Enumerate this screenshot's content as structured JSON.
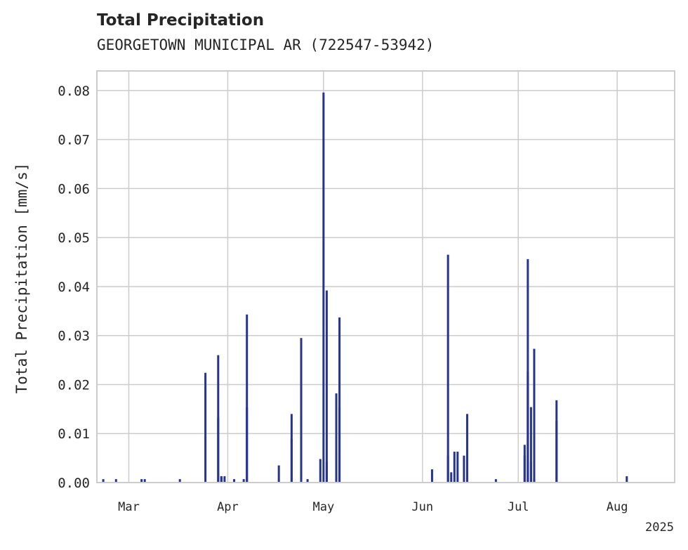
{
  "chart_data": {
    "type": "bar",
    "title": "Total Precipitation",
    "subtitle": "GEORGETOWN MUNICIPAL AR (722547-53942)",
    "ylabel": "Total Precipitation [mm/s]",
    "xlabel": "",
    "ylim": [
      0,
      0.084
    ],
    "yticks": [
      0.0,
      0.01,
      0.02,
      0.03,
      0.04,
      0.05,
      0.06,
      0.07,
      0.08
    ],
    "ytick_labels": [
      "0.00",
      "0.01",
      "0.02",
      "0.03",
      "0.04",
      "0.05",
      "0.06",
      "0.07",
      "0.08"
    ],
    "xlim": [
      "2025-02-19",
      "2025-08-19"
    ],
    "xticks": [
      "2025-03-01",
      "2025-04-01",
      "2025-05-01",
      "2025-06-01",
      "2025-07-01",
      "2025-08-01"
    ],
    "xtick_labels": [
      "Mar",
      "Apr",
      "May",
      "Jun",
      "Jul",
      "Aug"
    ],
    "year_label": "2025",
    "grid": true,
    "colors": {
      "bar": "#27348f",
      "grid": "#cccccc",
      "spine": "#cccccc"
    },
    "series": [
      {
        "x": [
          "2025-02-21",
          "2025-02-25",
          "2025-03-05",
          "2025-03-06",
          "2025-03-17",
          "2025-03-25",
          "2025-03-29",
          "2025-03-29",
          "2025-03-30",
          "2025-03-30",
          "2025-03-31",
          "2025-04-03",
          "2025-04-06",
          "2025-04-07",
          "2025-04-07",
          "2025-04-17",
          "2025-04-21",
          "2025-04-21",
          "2025-04-24",
          "2025-04-24",
          "2025-04-26",
          "2025-04-30",
          "2025-05-01",
          "2025-05-02",
          "2025-05-02",
          "2025-05-05",
          "2025-05-05",
          "2025-05-06",
          "2025-05-06",
          "2025-06-04",
          "2025-06-09",
          "2025-06-09",
          "2025-06-10",
          "2025-06-11",
          "2025-06-12",
          "2025-06-14",
          "2025-06-15",
          "2025-06-24",
          "2025-07-03",
          "2025-07-03",
          "2025-07-04",
          "2025-07-04",
          "2025-07-05",
          "2025-07-05",
          "2025-07-06",
          "2025-07-06",
          "2025-07-13",
          "2025-07-13",
          "2025-08-04"
        ],
        "values": [
          0.0007,
          0.0007,
          0.0007,
          0.0007,
          0.0007,
          0.0224,
          0.0133,
          0.026,
          0.0013,
          0.0013,
          0.0013,
          0.0007,
          0.0007,
          0.0343,
          0.0154,
          0.0035,
          0.0089,
          0.014,
          0.0295,
          0.021,
          0.0007,
          0.0048,
          0.0796,
          0.0392,
          0.0042,
          0.0182,
          0.0063,
          0.0337,
          0.0154,
          0.0027,
          0.0465,
          0.0055,
          0.0021,
          0.0063,
          0.0063,
          0.0055,
          0.014,
          0.0007,
          0.0077,
          0.0055,
          0.0456,
          0.0226,
          0.0154,
          0.0042,
          0.0273,
          0.0007,
          0.0168,
          0.0126,
          0.0013
        ]
      }
    ]
  }
}
